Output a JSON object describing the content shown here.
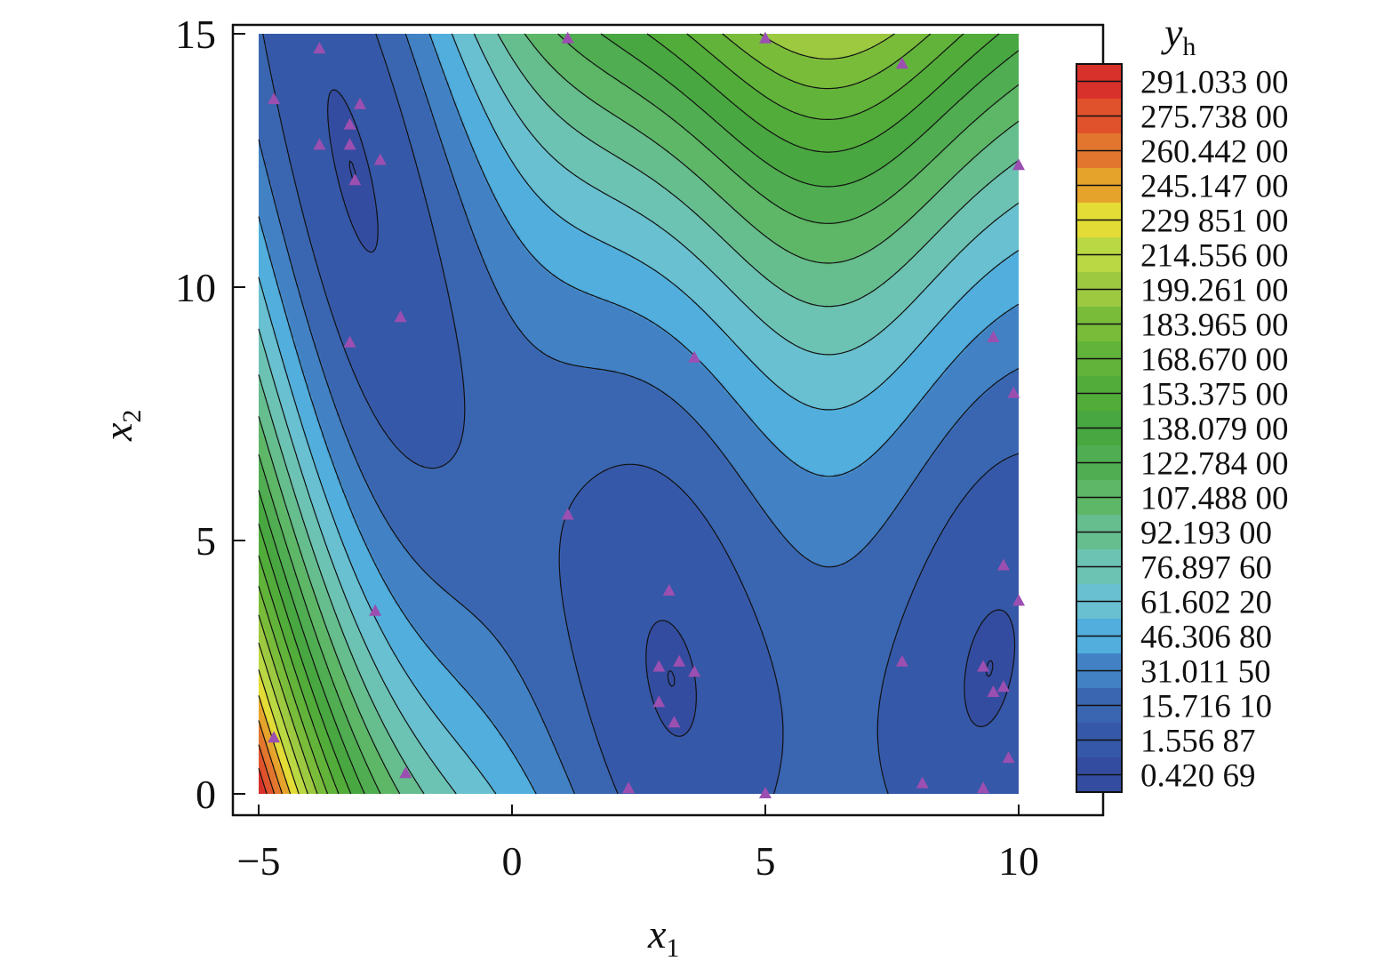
{
  "chart_data": {
    "type": "contour",
    "xlabel": {
      "main": "x",
      "sub": "1"
    },
    "ylabel": {
      "main": "x",
      "sub": "2"
    },
    "colorbar_title": {
      "main": "y",
      "sub": "h"
    },
    "xlim": [
      -5,
      10
    ],
    "ylim": [
      0,
      15
    ],
    "x_ticks": [
      {
        "value": -5,
        "label": "−5"
      },
      {
        "value": 0,
        "label": "0"
      },
      {
        "value": 5,
        "label": "5"
      },
      {
        "value": 10,
        "label": "10"
      }
    ],
    "y_ticks": [
      {
        "value": 0,
        "label": "0"
      },
      {
        "value": 5,
        "label": "5"
      },
      {
        "value": 10,
        "label": "10"
      },
      {
        "value": 15,
        "label": "15"
      }
    ],
    "levels": [
      {
        "label": "291.033 00",
        "value": 291.033,
        "color": "#d8302a"
      },
      {
        "label": "275.738 00",
        "value": 275.738,
        "color": "#e0522c"
      },
      {
        "label": "260.442 00",
        "value": 260.442,
        "color": "#e3762e"
      },
      {
        "label": "245.147 00",
        "value": 245.147,
        "color": "#e6a32b"
      },
      {
        "label": "229 851 00",
        "value": 229.851,
        "color": "#e3dc36"
      },
      {
        "label": "214.556 00",
        "value": 214.556,
        "color": "#bad843"
      },
      {
        "label": "199.261 00",
        "value": 199.261,
        "color": "#9dc941"
      },
      {
        "label": "183.965 00",
        "value": 183.965,
        "color": "#79bc3a"
      },
      {
        "label": "168.670 00",
        "value": 168.67,
        "color": "#62b33a"
      },
      {
        "label": "153.375 00",
        "value": 153.375,
        "color": "#52ac3a"
      },
      {
        "label": "138.079 00",
        "value": 138.079,
        "color": "#48a740"
      },
      {
        "label": "122.784 00",
        "value": 122.784,
        "color": "#50ad52"
      },
      {
        "label": "107.488 00",
        "value": 107.488,
        "color": "#5db767"
      },
      {
        "label": "92.193 00",
        "value": 92.193,
        "color": "#66bd8e"
      },
      {
        "label": "76.897 60",
        "value": 76.8976,
        "color": "#6dc3b3"
      },
      {
        "label": "61.602 20",
        "value": 61.6022,
        "color": "#68c0d1"
      },
      {
        "label": "46.306 80",
        "value": 46.3068,
        "color": "#51aedd"
      },
      {
        "label": "31.011 50",
        "value": 31.0115,
        "color": "#4282c4"
      },
      {
        "label": "15.716 10",
        "value": 15.7161,
        "color": "#3a66b1"
      },
      {
        "label": "1.556 87",
        "value": 1.55687,
        "color": "#3658a8"
      },
      {
        "label": "0.420 69",
        "value": 0.42069,
        "color": "#344c9f"
      }
    ],
    "points": [
      [
        -3.8,
        14.7
      ],
      [
        -4.7,
        13.7
      ],
      [
        -3.0,
        13.6
      ],
      [
        -3.2,
        13.2
      ],
      [
        -3.8,
        12.8
      ],
      [
        -3.2,
        12.8
      ],
      [
        -2.6,
        12.5
      ],
      [
        -3.1,
        12.1
      ],
      [
        1.1,
        14.9
      ],
      [
        5.0,
        14.9
      ],
      [
        7.7,
        14.4
      ],
      [
        10.0,
        12.4
      ],
      [
        -2.2,
        9.4
      ],
      [
        -3.2,
        8.9
      ],
      [
        3.6,
        8.6
      ],
      [
        9.5,
        9.0
      ],
      [
        9.9,
        7.9
      ],
      [
        1.1,
        5.5
      ],
      [
        3.1,
        4.0
      ],
      [
        9.7,
        4.5
      ],
      [
        10.0,
        3.8
      ],
      [
        -2.7,
        3.6
      ],
      [
        2.9,
        2.5
      ],
      [
        3.3,
        2.6
      ],
      [
        3.6,
        2.4
      ],
      [
        2.9,
        1.8
      ],
      [
        3.2,
        1.4
      ],
      [
        7.7,
        2.6
      ],
      [
        9.3,
        2.5
      ],
      [
        9.5,
        2.0
      ],
      [
        9.7,
        2.1
      ],
      [
        9.8,
        0.7
      ],
      [
        -4.7,
        1.1
      ],
      [
        -2.1,
        0.4
      ],
      [
        2.3,
        0.1
      ],
      [
        5.0,
        0.0
      ],
      [
        8.1,
        0.2
      ],
      [
        9.3,
        0.1
      ]
    ],
    "marker_color": "#9b4fb0"
  }
}
